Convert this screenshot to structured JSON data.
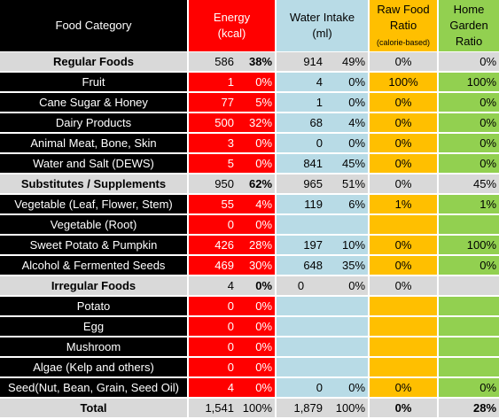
{
  "header": {
    "category": "Food Category",
    "energy": "Energy",
    "energy_unit": "(kcal)",
    "water": "Water Intake",
    "water_unit": "(ml)",
    "raw": "Raw Food Ratio",
    "raw_sub": "(calorie-based)",
    "garden": "Home Garden Ratio"
  },
  "rows": [
    {
      "type": "group",
      "name": "Regular Foods",
      "kcal": "586",
      "kcal_pct": "38%",
      "ml": "914",
      "ml_pct": "49%",
      "raw": "0%",
      "garden": "0%"
    },
    {
      "type": "item",
      "name": "Fruit",
      "kcal": "1",
      "kcal_pct": "0%",
      "ml": "4",
      "ml_pct": "0%",
      "raw": "100%",
      "garden": "100%"
    },
    {
      "type": "item",
      "name": "Cane Sugar & Honey",
      "kcal": "77",
      "kcal_pct": "5%",
      "ml": "1",
      "ml_pct": "0%",
      "raw": "0%",
      "garden": "0%"
    },
    {
      "type": "item",
      "name": "Dairy Products",
      "kcal": "500",
      "kcal_pct": "32%",
      "ml": "68",
      "ml_pct": "4%",
      "raw": "0%",
      "garden": "0%"
    },
    {
      "type": "item",
      "name": "Animal Meat, Bone, Skin",
      "kcal": "3",
      "kcal_pct": "0%",
      "ml": "0",
      "ml_pct": "0%",
      "raw": "0%",
      "garden": "0%"
    },
    {
      "type": "item",
      "name": "Water and Salt (DEWS)",
      "kcal": "5",
      "kcal_pct": "0%",
      "ml": "841",
      "ml_pct": "45%",
      "raw": "0%",
      "garden": "0%"
    },
    {
      "type": "group",
      "name": "Substitutes / Supplements",
      "kcal": "950",
      "kcal_pct": "62%",
      "ml": "965",
      "ml_pct": "51%",
      "raw": "0%",
      "garden": "45%"
    },
    {
      "type": "item",
      "name": "Vegetable (Leaf, Flower, Stem)",
      "kcal": "55",
      "kcal_pct": "4%",
      "ml": "119",
      "ml_pct": "6%",
      "raw": "1%",
      "garden": "1%"
    },
    {
      "type": "item",
      "name": "Vegetable (Root)",
      "kcal": "0",
      "kcal_pct": "0%",
      "ml": "",
      "ml_pct": "",
      "raw": "",
      "garden": ""
    },
    {
      "type": "item",
      "name": "Sweet Potato & Pumpkin",
      "kcal": "426",
      "kcal_pct": "28%",
      "ml": "197",
      "ml_pct": "10%",
      "raw": "0%",
      "garden": "100%"
    },
    {
      "type": "item",
      "name": "Alcohol & Fermented Seeds",
      "kcal": "469",
      "kcal_pct": "30%",
      "ml": "648",
      "ml_pct": "35%",
      "raw": "0%",
      "garden": "0%"
    },
    {
      "type": "group",
      "name": "Irregular Foods",
      "kcal": "4",
      "kcal_pct": "0%",
      "ml": "0",
      "ml_pct": "0%",
      "raw": "0%",
      "garden": ""
    },
    {
      "type": "item",
      "name": "Potato",
      "kcal": "0",
      "kcal_pct": "0%",
      "ml": "",
      "ml_pct": "",
      "raw": "",
      "garden": ""
    },
    {
      "type": "item",
      "name": "Egg",
      "kcal": "0",
      "kcal_pct": "0%",
      "ml": "",
      "ml_pct": "",
      "raw": "",
      "garden": ""
    },
    {
      "type": "item",
      "name": "Mushroom",
      "kcal": "0",
      "kcal_pct": "0%",
      "ml": "",
      "ml_pct": "",
      "raw": "",
      "garden": ""
    },
    {
      "type": "item",
      "name": "Algae (Kelp and others)",
      "kcal": "0",
      "kcal_pct": "0%",
      "ml": "",
      "ml_pct": "",
      "raw": "",
      "garden": ""
    },
    {
      "type": "item",
      "name": "Seed(Nut, Bean, Grain, Seed Oil)",
      "kcal": "4",
      "kcal_pct": "0%",
      "ml": "0",
      "ml_pct": "0%",
      "raw": "0%",
      "garden": "0%"
    },
    {
      "type": "total",
      "name": "Total",
      "kcal": "1,541",
      "kcal_pct": "100%",
      "ml": "1,879",
      "ml_pct": "100%",
      "raw": "0%",
      "garden": "28%"
    }
  ]
}
